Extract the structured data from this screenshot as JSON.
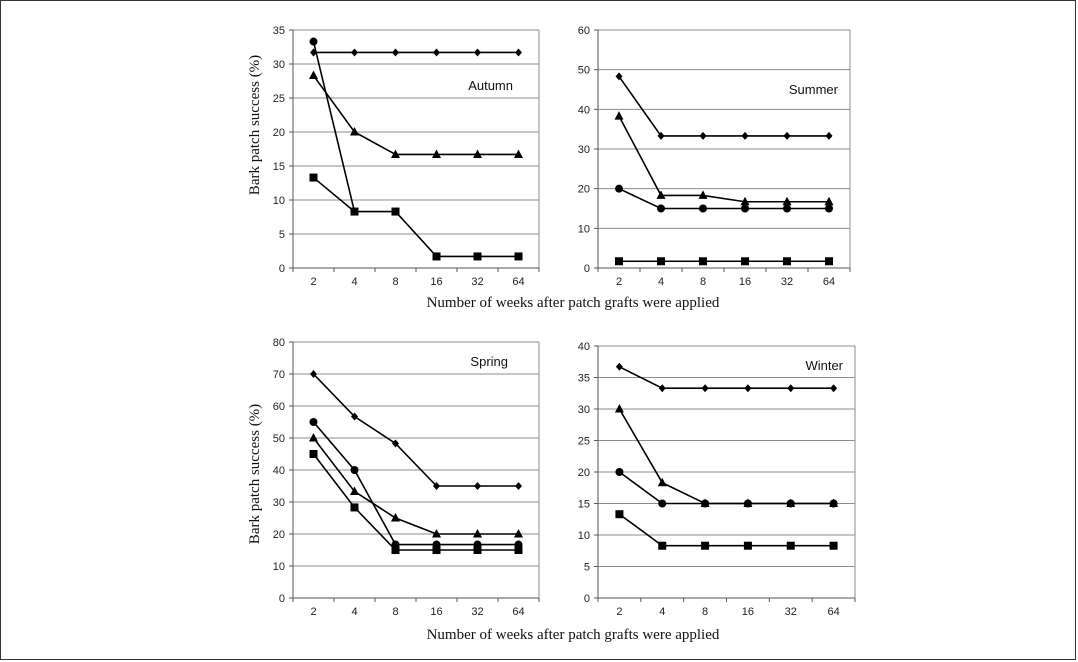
{
  "chart_data": [
    {
      "type": "line",
      "title": "Autumn",
      "ylabel": "Bark patch success (%)",
      "xlabel": "Number of weeks after patch grafts were applied",
      "categories": [
        "2",
        "4",
        "8",
        "16",
        "32",
        "64"
      ],
      "ylim": [
        0,
        35
      ],
      "yticks": [
        "0",
        "5",
        "10",
        "15",
        "20",
        "25",
        "30",
        "35"
      ],
      "grid": true,
      "series": [
        {
          "marker": "diamond",
          "values": [
            31.7,
            31.7,
            31.7,
            31.7,
            31.7,
            31.7
          ]
        },
        {
          "marker": "circle",
          "values": [
            33.3,
            8.3,
            null,
            null,
            null,
            null
          ]
        },
        {
          "marker": "triangle",
          "values": [
            28.3,
            20,
            16.7,
            16.7,
            16.7,
            16.7
          ]
        },
        {
          "marker": "square",
          "values": [
            13.3,
            8.3,
            8.3,
            1.7,
            1.7,
            1.7
          ]
        }
      ]
    },
    {
      "type": "line",
      "title": "Summer",
      "categories": [
        "2",
        "4",
        "8",
        "16",
        "32",
        "64"
      ],
      "ylim": [
        0,
        60
      ],
      "yticks": [
        "0",
        "10",
        "20",
        "30",
        "40",
        "50",
        "60"
      ],
      "grid": true,
      "series": [
        {
          "marker": "diamond",
          "values": [
            48.3,
            33.3,
            33.3,
            33.3,
            33.3,
            33.3
          ]
        },
        {
          "marker": "triangle",
          "values": [
            38.3,
            18.3,
            18.3,
            16.7,
            16.7,
            16.7
          ]
        },
        {
          "marker": "circle",
          "values": [
            20,
            15,
            15,
            15,
            15,
            15
          ]
        },
        {
          "marker": "square",
          "values": [
            1.7,
            1.7,
            1.7,
            1.7,
            1.7,
            1.7
          ]
        }
      ]
    },
    {
      "type": "line",
      "title": "Spring",
      "ylabel": "Bark patch success (%)",
      "xlabel": "Number of weeks after patch grafts were applied",
      "categories": [
        "2",
        "4",
        "8",
        "16",
        "32",
        "64"
      ],
      "ylim": [
        0,
        80
      ],
      "yticks": [
        "0",
        "10",
        "20",
        "30",
        "40",
        "50",
        "60",
        "70",
        "80"
      ],
      "grid": true,
      "series": [
        {
          "marker": "diamond",
          "values": [
            70,
            56.7,
            48.3,
            35,
            35,
            35
          ]
        },
        {
          "marker": "circle",
          "values": [
            55,
            40,
            16.7,
            16.7,
            16.7,
            16.7
          ]
        },
        {
          "marker": "triangle",
          "values": [
            50,
            33.3,
            25,
            20,
            20,
            20
          ]
        },
        {
          "marker": "square",
          "values": [
            45,
            28.3,
            15,
            15,
            15,
            15
          ]
        }
      ]
    },
    {
      "type": "line",
      "title": "Winter",
      "categories": [
        "2",
        "4",
        "8",
        "16",
        "32",
        "64"
      ],
      "ylim": [
        0,
        40
      ],
      "yticks": [
        "0",
        "5",
        "10",
        "15",
        "20",
        "25",
        "30",
        "35",
        "40"
      ],
      "grid": true,
      "series": [
        {
          "marker": "diamond",
          "values": [
            36.7,
            33.3,
            33.3,
            33.3,
            33.3,
            33.3
          ]
        },
        {
          "marker": "triangle",
          "values": [
            30,
            18.3,
            15,
            15,
            15,
            15
          ]
        },
        {
          "marker": "circle",
          "values": [
            20,
            15,
            15,
            15,
            15,
            15
          ]
        },
        {
          "marker": "square",
          "values": [
            13.3,
            8.3,
            8.3,
            8.3,
            8.3,
            8.3
          ]
        }
      ]
    }
  ]
}
